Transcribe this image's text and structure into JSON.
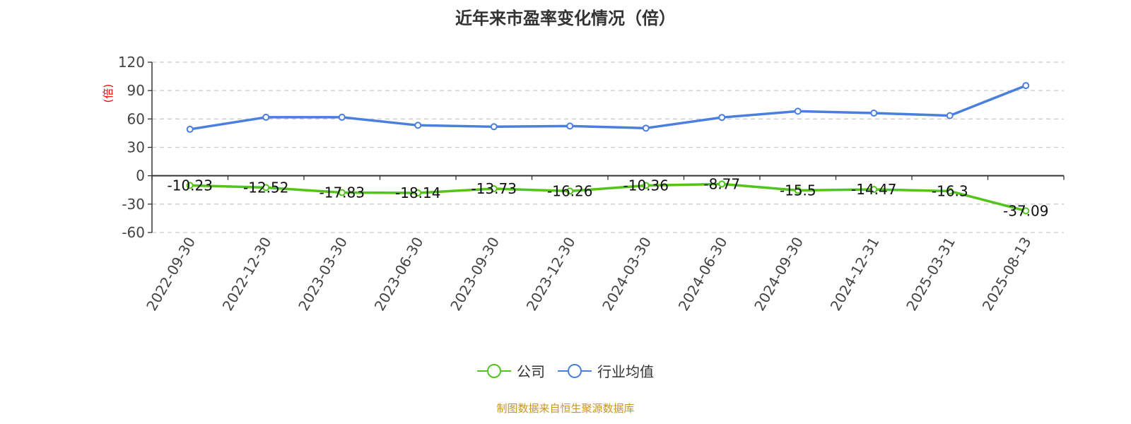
{
  "chart_data": {
    "type": "line",
    "title": "近年来市盈率变化情况（倍）",
    "ylabel": "(倍)",
    "ylim": [
      -60,
      120
    ],
    "yticks": [
      -60,
      -30,
      0,
      30,
      60,
      90,
      120
    ],
    "grid": true,
    "legend_placement": "bottom",
    "categories": [
      "2022-09-30",
      "2022-12-30",
      "2023-03-30",
      "2023-06-30",
      "2023-09-30",
      "2023-12-30",
      "2024-03-30",
      "2024-06-30",
      "2024-09-30",
      "2024-12-31",
      "2025-03-31",
      "2025-08-13"
    ],
    "series": [
      {
        "name": "公司",
        "color": "#52c41a",
        "labels": true,
        "values": [
          -10.23,
          -12.52,
          -17.83,
          -18.14,
          -13.73,
          -16.26,
          -10.36,
          -8.77,
          -15.5,
          -14.47,
          -16.3,
          -37.09
        ]
      },
      {
        "name": "行业均值",
        "color": "#4a7fe0",
        "labels": false,
        "values": [
          49.1,
          61.8,
          61.8,
          53.3,
          51.8,
          52.5,
          50.3,
          61.6,
          68.2,
          66.2,
          63.5,
          95.3
        ]
      }
    ]
  },
  "source": "制图数据来自恒生聚源数据库"
}
